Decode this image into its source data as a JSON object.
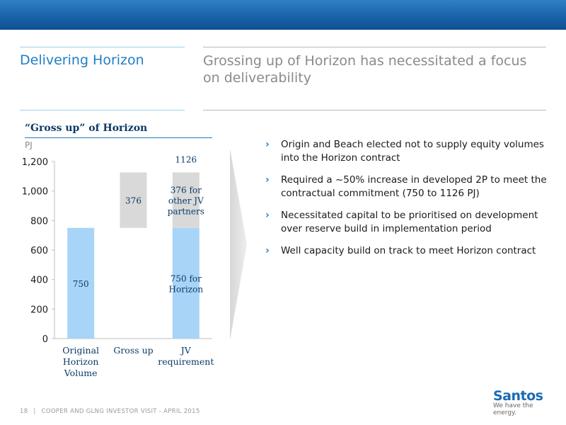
{
  "header": {
    "section_title": "Delivering Horizon",
    "headline": "Grossing up of Horizon has necessitated a focus on deliverability"
  },
  "chart_data": {
    "type": "bar",
    "title": "“Gross up” of Horizon",
    "ylabel": "PJ",
    "ylim": [
      0,
      1200
    ],
    "yticks": [
      0,
      200,
      400,
      600,
      800,
      1000,
      1200
    ],
    "ytick_labels": [
      "0",
      "200",
      "400",
      "600",
      "800",
      "1,000",
      "1,200"
    ],
    "categories": [
      "Original Horizon Volume",
      "Gross up",
      "JV requirement"
    ],
    "category_lines": [
      [
        "Original",
        "Horizon",
        "Volume"
      ],
      [
        "Gross up"
      ],
      [
        "JV",
        "requirement"
      ]
    ],
    "bars": [
      {
        "category": "Original Horizon Volume",
        "base": 0,
        "value": 750,
        "color": "#a8d4f7",
        "label": "750"
      },
      {
        "category": "Gross up",
        "base": 750,
        "value": 376,
        "color": "#d9d9d9",
        "label": "376"
      },
      {
        "category": "JV requirement",
        "base": 0,
        "value": 750,
        "color": "#a8d4f7",
        "label": "750 for Horizon",
        "label_lines": [
          "750 for",
          "Horizon"
        ]
      },
      {
        "category": "JV requirement",
        "base": 750,
        "value": 376,
        "color": "#d9d9d9",
        "label": "376 for other JV partners",
        "label_lines": [
          "376 for",
          "other JV",
          "partners"
        ]
      }
    ],
    "total_label": "1126"
  },
  "bullets": [
    "Origin and Beach elected not to supply equity volumes into the Horizon contract",
    "Required a ~50% increase in developed 2P to meet the contractual commitment (750 to 1126 PJ)",
    "Necessitated capital to be prioritised on development over reserve build in implementation period",
    "Well capacity build on track to meet Horizon contract"
  ],
  "bullet_marker": "›",
  "footer": {
    "page": "18",
    "separator": "|",
    "text": "COOPER AND GLNG INVESTOR VISIT - APRIL 2015"
  },
  "logo": {
    "name": "Santos",
    "tagline": "We have the energy."
  },
  "colors": {
    "brand_blue": "#1f7fc4",
    "bar_blue": "#a8d4f7",
    "bar_grey": "#d9d9d9"
  }
}
